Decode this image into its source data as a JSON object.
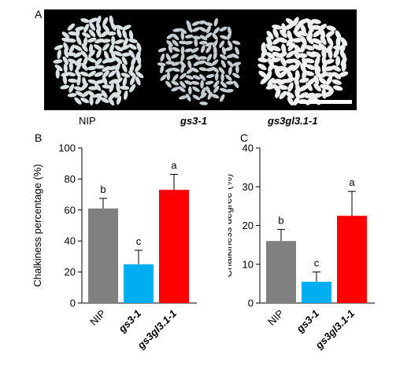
{
  "panels": {
    "a": "A",
    "b": "B",
    "c": "C"
  },
  "photo_labels": [
    "NIP",
    "gs3-1",
    "gs3gl3.1-1"
  ],
  "colors": {
    "NIP": "#808080",
    "gs3-1": "#00aeef",
    "gs3gl3.1-1": "#ff0000",
    "photo_bg": "#000000",
    "scale_bar": "#ffffff"
  },
  "chart_data": [
    {
      "type": "bar",
      "panel": "B",
      "categories": [
        "NIP",
        "gs3-1",
        "gs3gl3.1-1"
      ],
      "values": [
        61,
        25,
        73
      ],
      "errors": [
        6.5,
        9,
        10
      ],
      "significance": [
        "b",
        "c",
        "a"
      ],
      "title": "",
      "xlabel": "",
      "ylabel": "Chalkiness percentage (%)",
      "ylim": [
        0,
        100
      ],
      "yticks": [
        0,
        20,
        40,
        60,
        80,
        100
      ],
      "grid": false
    },
    {
      "type": "bar",
      "panel": "C",
      "categories": [
        "NIP",
        "gs3-1",
        "gs3gl3.1-1"
      ],
      "values": [
        16,
        5.5,
        22.5
      ],
      "errors": [
        3,
        2.5,
        6.3
      ],
      "significance": [
        "b",
        "c",
        "a"
      ],
      "title": "",
      "xlabel": "",
      "ylabel": "Chalkiness degree (%)",
      "ylim": [
        0,
        40
      ],
      "yticks": [
        0,
        10,
        20,
        30,
        40
      ],
      "grid": false
    }
  ]
}
